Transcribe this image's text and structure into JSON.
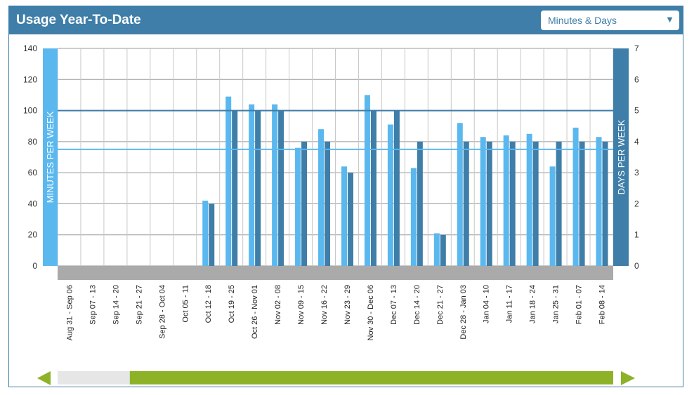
{
  "header": {
    "title": "Usage Year-To-Date",
    "dropdown_value": "Minutes & Days"
  },
  "colors": {
    "header": "#3e7ea8",
    "minutes_bar": "#5bb8ef",
    "days_bar": "#3e7ea8",
    "scroll_thumb": "#8db228",
    "scroll_track": "#e6e6e6",
    "category_band": "#aaaaaa",
    "grid": "#999999"
  },
  "icons": {
    "dropdown": "caret-down-icon",
    "scroll_left": "triangle-left-icon",
    "scroll_right": "triangle-right-icon"
  },
  "scrollbar": {
    "visible_fraction": 0.87,
    "position_fraction": 1.0
  },
  "chart_data": {
    "type": "bar",
    "y_left_label": "MINUTES PER WEEK",
    "y_right_label": "DAYS PER WEEK",
    "y_left_range": [
      0,
      140
    ],
    "y_left_ticks": [
      "0",
      "20",
      "40",
      "60",
      "80",
      "100",
      "120",
      "140"
    ],
    "y_right_range": [
      0,
      7
    ],
    "y_right_ticks": [
      "0",
      "1",
      "2",
      "3",
      "4",
      "5",
      "6",
      "7"
    ],
    "reference_lines": [
      {
        "axis": "right",
        "value": 5
      },
      {
        "axis": "left",
        "value": 75
      }
    ],
    "categories": [
      "Aug 31 - Sep 06",
      "Sep 07 - 13",
      "Sep 14 - 20",
      "Sep 21 - 27",
      "Sep 28 - Oct 04",
      "Oct 05 - 11",
      "Oct 12 - 18",
      "Oct 19 - 25",
      "Oct 26 - Nov 01",
      "Nov 02 - 08",
      "Nov 09 - 15",
      "Nov 16 - 22",
      "Nov 23 - 29",
      "Nov 30 - Dec 06",
      "Dec 07 - 13",
      "Dec 14 - 20",
      "Dec 21 - 27",
      "Dec 28 - Jan 03",
      "Jan 04 - 10",
      "Jan 11 - 17",
      "Jan 18 - 24",
      "Jan 25 - 31",
      "Feb 01 - 07",
      "Feb 08 - 14"
    ],
    "series": [
      {
        "axis": "left",
        "values": [
          0,
          0,
          0,
          0,
          0,
          0,
          42,
          109,
          104,
          104,
          76,
          88,
          64,
          110,
          91,
          63,
          21,
          92,
          83,
          84,
          85,
          64,
          89,
          83
        ]
      },
      {
        "axis": "right",
        "values": [
          0,
          0,
          0,
          0,
          0,
          0,
          2,
          5,
          5,
          5,
          4,
          4,
          3,
          5,
          5,
          4,
          1,
          4,
          4,
          4,
          4,
          4,
          4,
          4
        ]
      }
    ]
  }
}
